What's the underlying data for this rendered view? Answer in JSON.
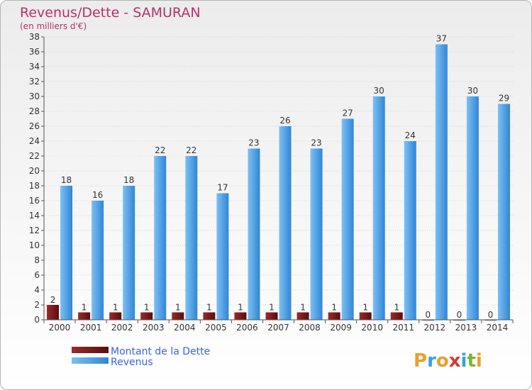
{
  "chart_data": {
    "type": "bar",
    "title": "Revenus/Dette - SAMURAN",
    "subtitle": "(en milliers d'€)",
    "categories": [
      "2000",
      "2001",
      "2002",
      "2003",
      "2004",
      "2005",
      "2006",
      "2007",
      "2008",
      "2009",
      "2010",
      "2011",
      "2012",
      "2013",
      "2014"
    ],
    "series": [
      {
        "name": "Montant de la Dette",
        "color": "#7a1a1a",
        "values": [
          2,
          1,
          1,
          1,
          1,
          1,
          1,
          1,
          1,
          1,
          1,
          1,
          0,
          0,
          0
        ]
      },
      {
        "name": "Revenus",
        "color": "#4a9de0",
        "values": [
          18,
          16,
          18,
          22,
          22,
          17,
          23,
          26,
          23,
          27,
          30,
          24,
          37,
          30,
          29
        ]
      }
    ],
    "ylim": [
      0,
      38
    ],
    "yticks": [
      0,
      2,
      4,
      6,
      8,
      10,
      12,
      14,
      16,
      18,
      20,
      22,
      24,
      26,
      28,
      30,
      32,
      34,
      36,
      38
    ],
    "grid": true,
    "legend_position": "bottom-left"
  },
  "logo": {
    "text": "Proxiti"
  }
}
